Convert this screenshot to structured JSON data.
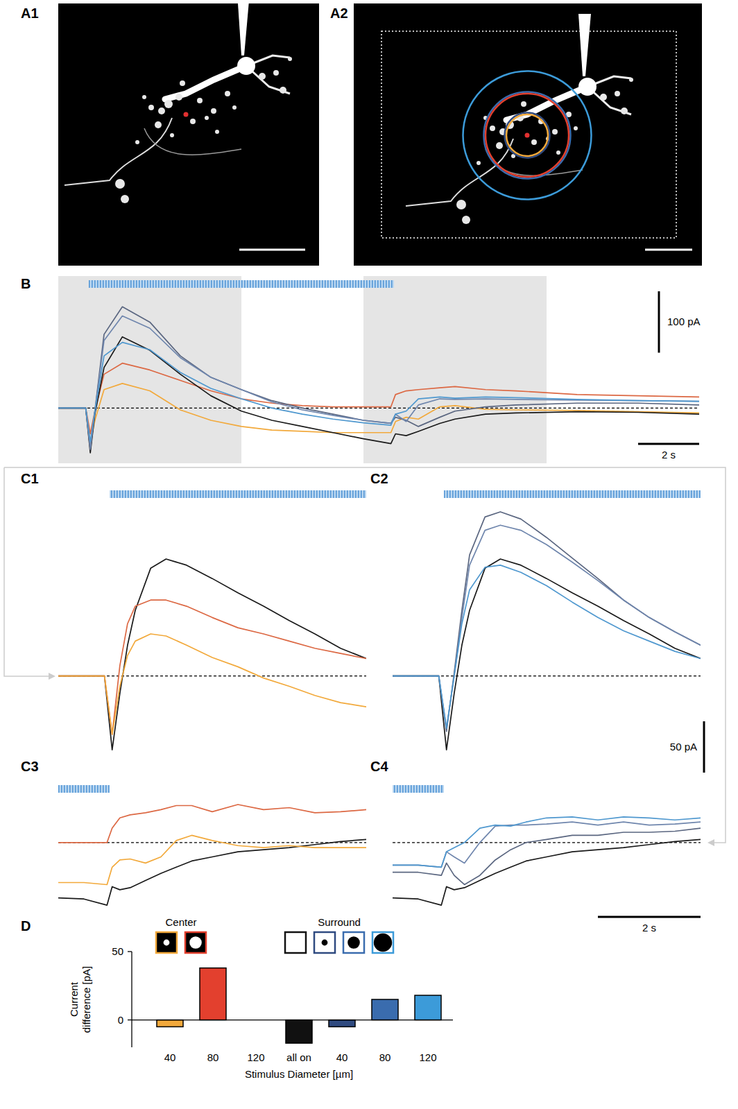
{
  "panel_labels": [
    "A1",
    "A2",
    "B",
    "C1",
    "C2",
    "C3",
    "C4",
    "D"
  ],
  "chart_data": [
    {
      "type": "line",
      "tick_labels": false,
      "x": [
        -1,
        -0.1,
        0.05,
        0.2,
        0.5,
        1.1,
        2,
        3,
        4,
        5,
        6,
        7,
        8,
        9,
        9.9,
        10.05,
        10.4,
        10.8,
        11.5,
        12,
        13,
        14,
        16,
        18,
        20
      ],
      "xlim": [
        -1,
        20
      ],
      "ylim": [
        -90,
        215
      ],
      "baseline": 0,
      "shaded": [
        [
          -1,
          5
        ],
        [
          9,
          15
        ]
      ],
      "stimulus": [
        0,
        10
      ],
      "scale_bars": [
        {
          "axis": "y",
          "value": 100,
          "label": "100 pA"
        },
        {
          "axis": "x",
          "value": 2,
          "label": "2 s"
        }
      ],
      "series": [
        {
          "color": "#f2a93b",
          "values": [
            0,
            0,
            -57,
            -20,
            30,
            40,
            28,
            -3,
            -20,
            -30,
            -36,
            -38,
            -40,
            -40,
            -40,
            -22,
            -15,
            -18,
            2,
            4,
            -2,
            -3,
            -4,
            -6,
            -8
          ]
        },
        {
          "color": "#dc6843",
          "values": [
            0,
            0,
            -42,
            -5,
            55,
            73,
            62,
            45,
            28,
            15,
            8,
            4,
            2,
            2,
            2,
            22,
            28,
            30,
            33,
            35,
            30,
            28,
            22,
            20,
            18
          ]
        },
        {
          "color": "#1a1a1a",
          "values": [
            0,
            0,
            -73,
            -10,
            66,
            116,
            94,
            55,
            20,
            -5,
            -20,
            -30,
            -40,
            -50,
            -58,
            -42,
            -45,
            -38,
            -25,
            -18,
            -10,
            -8,
            -6,
            -7,
            -10
          ]
        },
        {
          "color": "#5a6680",
          "values": [
            0,
            0,
            -68,
            -5,
            120,
            165,
            140,
            85,
            50,
            30,
            12,
            0,
            -10,
            -20,
            -25,
            -15,
            -20,
            -30,
            -15,
            -5,
            2,
            5,
            8,
            8,
            5
          ]
        },
        {
          "color": "#6f86ad",
          "values": [
            0,
            0,
            -66,
            -5,
            110,
            150,
            130,
            82,
            50,
            30,
            10,
            -3,
            -12,
            -20,
            -25,
            -10,
            -22,
            5,
            15,
            14,
            15,
            14,
            13,
            12,
            11
          ]
        },
        {
          "color": "#4f98cf",
          "values": [
            0,
            0,
            -55,
            -5,
            85,
            107,
            95,
            58,
            32,
            15,
            0,
            -10,
            -18,
            -24,
            -28,
            -10,
            -5,
            15,
            18,
            16,
            18,
            17,
            14,
            12,
            11
          ]
        }
      ]
    },
    {
      "type": "line",
      "tick_labels": false,
      "x": [
        -1,
        -0.1,
        0.05,
        0.2,
        0.35,
        0.5,
        0.8,
        1.1,
        1.5,
        2,
        2.5,
        3,
        3.5,
        4,
        4.5,
        5
      ],
      "xlim": [
        -1,
        5
      ],
      "ylim": [
        -80,
        185
      ],
      "baseline": 0,
      "stimulus": [
        0,
        5
      ],
      "series": [
        {
          "color": "#1a1a1a",
          "values": [
            0,
            0,
            -72,
            -17,
            30,
            64,
            105,
            114,
            108,
            95,
            81,
            68,
            54,
            41,
            27,
            17
          ]
        },
        {
          "color": "#dc6843",
          "values": [
            0,
            0,
            -57,
            10,
            51,
            68,
            74,
            74,
            68,
            57,
            47,
            41,
            34,
            27,
            22,
            17
          ]
        },
        {
          "color": "#f2a93b",
          "values": [
            0,
            0,
            -57,
            -10,
            20,
            34,
            41,
            39,
            30,
            18,
            9,
            -2,
            -10,
            -19,
            -26,
            -30
          ]
        }
      ]
    },
    {
      "type": "line",
      "tick_labels": false,
      "x": [
        -1,
        -0.1,
        0.05,
        0.2,
        0.35,
        0.5,
        0.8,
        1.1,
        1.5,
        2,
        2.5,
        3,
        3.5,
        4,
        4.5,
        5
      ],
      "xlim": [
        -1,
        5
      ],
      "ylim": [
        -80,
        185
      ],
      "baseline": 0,
      "stimulus": [
        0,
        5
      ],
      "scale_bars": [
        {
          "axis": "y",
          "value": 50,
          "label": "50 pA"
        }
      ],
      "series": [
        {
          "color": "#1a1a1a",
          "values": [
            0,
            0,
            -72,
            -17,
            30,
            64,
            105,
            114,
            108,
            95,
            81,
            68,
            54,
            41,
            27,
            17
          ]
        },
        {
          "color": "#5a6680",
          "values": [
            0,
            0,
            -54,
            3,
            64,
            118,
            155,
            160,
            153,
            135,
            115,
            95,
            74,
            57,
            43,
            30
          ]
        },
        {
          "color": "#6f86ad",
          "values": [
            0,
            0,
            -51,
            0,
            57,
            108,
            142,
            147,
            142,
            128,
            111,
            93,
            74,
            57,
            43,
            30
          ]
        },
        {
          "color": "#4f98cf",
          "values": [
            0,
            0,
            -51,
            0,
            51,
            84,
            106,
            108,
            101,
            88,
            72,
            57,
            44,
            34,
            24,
            17
          ]
        }
      ]
    },
    {
      "type": "line",
      "tick_labels": false,
      "x": [
        9,
        9.5,
        9.95,
        10.05,
        10.2,
        10.4,
        10.7,
        11,
        11.3,
        11.6,
        12,
        12.5,
        13,
        13.5,
        14,
        14.5,
        15
      ],
      "xlim": [
        9,
        15
      ],
      "ylim": [
        -65,
        60
      ],
      "baseline": 0,
      "stimulus": [
        9,
        10
      ],
      "series": [
        {
          "color": "#1a1a1a",
          "values": [
            -54,
            -55,
            -61,
            -43,
            -46,
            -44,
            -37,
            -30,
            -24,
            -18,
            -14,
            -9,
            -7,
            -5,
            -2,
            1,
            3
          ]
        },
        {
          "color": "#dc6843",
          "values": [
            0,
            0,
            0,
            14,
            24,
            27,
            29,
            32,
            36,
            36,
            30,
            37,
            32,
            34,
            29,
            30,
            32
          ]
        },
        {
          "color": "#f2a93b",
          "values": [
            -39,
            -39,
            -41,
            -24,
            -17,
            -16,
            -20,
            -14,
            2,
            7,
            2,
            -3,
            -5,
            -3,
            -5,
            -5,
            -5
          ]
        }
      ]
    },
    {
      "type": "line",
      "tick_labels": false,
      "x": [
        9,
        9.5,
        9.95,
        10.05,
        10.2,
        10.4,
        10.7,
        11,
        11.3,
        11.6,
        12,
        12.5,
        13,
        13.5,
        14,
        14.5,
        15
      ],
      "xlim": [
        9,
        15
      ],
      "ylim": [
        -65,
        60
      ],
      "baseline": 0,
      "stimulus": [
        9,
        10
      ],
      "scale_bars": [
        {
          "axis": "x",
          "value": 2,
          "label": "2 s"
        }
      ],
      "series": [
        {
          "color": "#1a1a1a",
          "values": [
            -54,
            -55,
            -61,
            -43,
            -46,
            -44,
            -37,
            -30,
            -24,
            -18,
            -14,
            -9,
            -7,
            -5,
            -2,
            1,
            3
          ]
        },
        {
          "color": "#5a6680",
          "values": [
            -29,
            -29,
            -32,
            -20,
            -32,
            -41,
            -32,
            -17,
            -7,
            0,
            3,
            7,
            7,
            10,
            10,
            11,
            14
          ]
        },
        {
          "color": "#6f86ad",
          "values": [
            -22,
            -22,
            -24,
            -9,
            -14,
            -20,
            0,
            16,
            17,
            17,
            18,
            20,
            17,
            20,
            17,
            18,
            20
          ]
        },
        {
          "color": "#4f98cf",
          "values": [
            -22,
            -22,
            -24,
            -9,
            -5,
            0,
            14,
            17,
            16,
            20,
            24,
            25,
            22,
            25,
            24,
            22,
            24
          ]
        }
      ]
    },
    {
      "type": "bar",
      "categories": [
        "40",
        "80",
        "120",
        "all on",
        "40",
        "80",
        "120"
      ],
      "values": [
        -5,
        38,
        null,
        -17,
        -5,
        15,
        18
      ],
      "colors": [
        "#f2a93b",
        "#e3402e",
        null,
        "#111111",
        "#2f4a80",
        "#3a6cae",
        "#3c9bd9"
      ],
      "ylim": [
        -20,
        50
      ],
      "yticks": [
        0,
        50
      ],
      "xlabel": "Stimulus Diameter [µm]",
      "ylabel": "Current difference [pA]",
      "legend": "top",
      "legend_groups": [
        {
          "title": "Center",
          "items": [
            0,
            1
          ],
          "color": "#000000"
        },
        {
          "title": "Surround",
          "items": [
            3,
            4,
            5,
            6
          ],
          "color": "#ffffff"
        }
      ]
    }
  ]
}
